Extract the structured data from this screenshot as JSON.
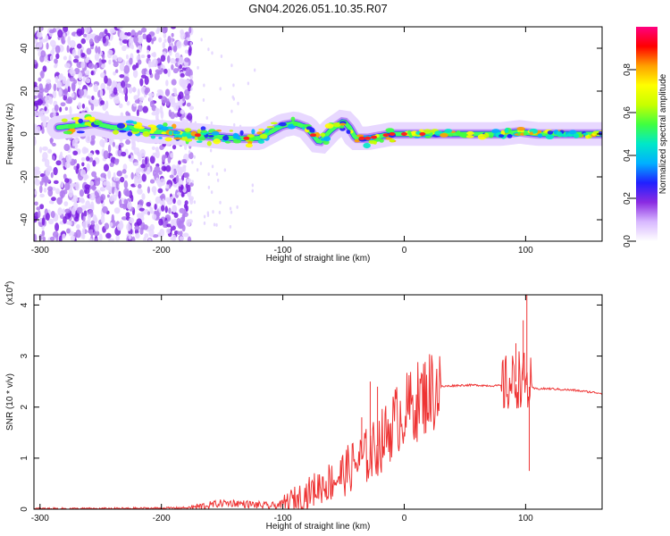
{
  "chart_data": [
    {
      "type": "heatmap",
      "title": "GN04.2026.051.10.35.R07",
      "xlabel": "Height of straight line (km)",
      "ylabel": "Frequency (Hz)",
      "xlim": [
        -305,
        163
      ],
      "ylim": [
        -50,
        50
      ],
      "xticks": [
        -300,
        -200,
        -100,
        0,
        100
      ],
      "yticks": [
        -40,
        -20,
        0,
        20,
        40
      ],
      "colorbar": {
        "label": "Normalized spectral amplitude",
        "range": [
          0,
          1
        ],
        "ticks": [
          "0.0",
          "0.2",
          "0.4",
          "0.6",
          "0.8"
        ],
        "colormap": [
          "#ffffff",
          "#d8b8ff",
          "#8a2be2",
          "#2020ff",
          "#00b0ff",
          "#00e8c8",
          "#40ff40",
          "#c8ff00",
          "#ffff00",
          "#ffa000",
          "#ff0000",
          "#ff0080"
        ]
      },
      "ridge": {
        "x": [
          -285,
          -270,
          -255,
          -240,
          -225,
          -210,
          -200,
          -180,
          -160,
          -140,
          -120,
          -100,
          -90,
          -80,
          -70,
          -60,
          -50,
          -45,
          -40,
          -30,
          -20,
          -10,
          0,
          20,
          40,
          60,
          80,
          95,
          110,
          130,
          163
        ],
        "freq": [
          3,
          4,
          5,
          3,
          3,
          1,
          1,
          0,
          -1,
          -2,
          -2,
          4,
          5,
          3,
          -4,
          2,
          6,
          3,
          -2,
          -2,
          -1,
          0,
          0,
          0,
          0,
          0,
          0,
          1,
          0,
          0,
          0
        ]
      },
      "noise_region": {
        "x_from": -305,
        "x_to": -185
      }
    },
    {
      "type": "line",
      "xlabel": "Height of straight line (km)",
      "ylabel": "SNR (10 * v/v)",
      "y_scale_label": "(x10",
      "y_scale_exponent": "4",
      "xlim": [
        -305,
        163
      ],
      "ylim": [
        0,
        4.2
      ],
      "xticks": [
        -300,
        -200,
        -100,
        0,
        100
      ],
      "yticks": [
        0,
        1,
        2,
        3,
        4
      ],
      "color": "#ee3333",
      "series": [
        {
          "x": [
            -305,
            -250,
            -200,
            -175,
            -160,
            -150,
            -140,
            -130,
            -120,
            -110,
            -100,
            -90,
            -80,
            -70,
            -60,
            -50,
            -40,
            -30,
            -25,
            -20,
            -15,
            -10,
            -5,
            0,
            10,
            20,
            30,
            40,
            50,
            60,
            70,
            80,
            88,
            92,
            96,
            100,
            104,
            108,
            120,
            140,
            163
          ],
          "y": [
            0.01,
            0.01,
            0.02,
            0.03,
            0.08,
            0.12,
            0.12,
            0.1,
            0.08,
            0.06,
            0.1,
            0.2,
            0.3,
            0.45,
            0.55,
            0.7,
            0.9,
            1.05,
            1.15,
            1.3,
            1.45,
            1.65,
            1.8,
            1.9,
            2.1,
            2.3,
            2.4,
            2.42,
            2.43,
            2.43,
            2.42,
            2.42,
            2.45,
            2.5,
            2.6,
            2.45,
            2.38,
            2.36,
            2.36,
            2.33,
            2.27
          ]
        }
      ],
      "spikes": [
        {
          "x": -28,
          "y": 2.5
        },
        {
          "x": -22,
          "y": 2.4
        },
        {
          "x": -35,
          "y": 1.8
        },
        {
          "x": 92,
          "y": 3.25
        },
        {
          "x": 98,
          "y": 3.7
        },
        {
          "x": 101,
          "y": 4.2
        },
        {
          "x": 103,
          "y": 0.75
        }
      ]
    }
  ]
}
